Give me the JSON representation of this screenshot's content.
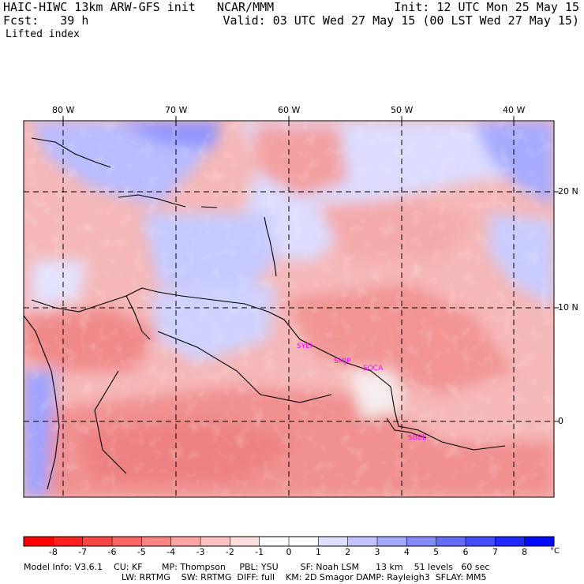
{
  "header": {
    "title": "HAIC-HIWC 13km ARW-GFS init   NCAR/MMM",
    "fcst": "Fcst:   39 h",
    "field": "Lifted index",
    "init": "Init: 12 UTC Mon 25 May 15",
    "valid": "Valid: 03 UTC Wed 27 May 15 (00 LST Wed 27 May 15)"
  },
  "map": {
    "lon_labels": [
      "80 W",
      "70 W",
      "60 W",
      "50 W",
      "40 W"
    ],
    "lat_labels": [
      "20 N",
      "10 N",
      "0"
    ],
    "stations": [
      "SYEI",
      "SMJP",
      "SOCA",
      "SBBE"
    ],
    "colors": {
      "blue": "#3b4cff",
      "red": "#ff3030",
      "contour": "#000000",
      "station": "#ff00ff"
    }
  },
  "colorbar": {
    "labels": [
      "-8",
      "-7",
      "-6",
      "-5",
      "-4",
      "-3",
      "-2",
      "-1",
      "0",
      "1",
      "2",
      "3",
      "4",
      "5",
      "6",
      "7",
      "8"
    ],
    "unit": "°C"
  },
  "footer": {
    "line1": "Model Info: V3.6.1    CU: KF       MP: Thompson     PBL: YSU        SF: Noah LSM      13 km    51 levels   60 sec",
    "line2": "LW: RRTMG    SW: RRTMG  DIFF: full    KM: 2D Smagor DAMP: Rayleigh3  SFLAY: MM5"
  }
}
